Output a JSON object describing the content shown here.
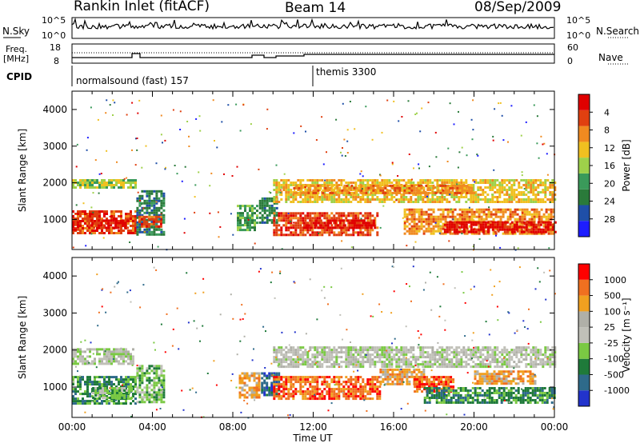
{
  "header": {
    "station": "Rankin Inlet (fitACF)",
    "beam": "Beam 14",
    "date": "08/Sep/2009"
  },
  "left_labels": {
    "nsky": "N.Sky",
    "freq_line1": "Freq.",
    "freq_line2": "[MHz]",
    "cpid": "CPID"
  },
  "right_labels": {
    "nsearch": "N.Search",
    "nave": "Nave"
  },
  "mini_axes": {
    "nsky_ticks": [
      "10^5",
      "10^0"
    ],
    "freq_ticks": [
      "18",
      "8"
    ],
    "nsearch_ticks": [
      "10^5",
      "10^0"
    ],
    "nave_ticks": [
      "60",
      "0"
    ]
  },
  "cpid_modes": [
    {
      "label": "normalsound (fast) 157",
      "start_hour": 0
    },
    {
      "label": "themis 3300",
      "start_hour": 12.0
    }
  ],
  "colors": {
    "power": [
      "#1d1dff",
      "#1f4fa8",
      "#2a7a3a",
      "#3a9a5a",
      "#9ed14a",
      "#f0c020",
      "#f08a20",
      "#e04010",
      "#e00000"
    ],
    "velocity": [
      "#2233cc",
      "#2e6a8a",
      "#1f7a3a",
      "#7ac943",
      "#c0c0b8",
      "#b0b0a8",
      "#f0a020",
      "#f07020",
      "#ff0000"
    ]
  },
  "chart_data": [
    {
      "type": "heatmap",
      "panel": "power",
      "ylabel": "Slant Range [km]",
      "xlim": [
        0,
        24
      ],
      "ylim": [
        180,
        4500
      ],
      "yticks": [
        "1000",
        "2000",
        "3000",
        "4000"
      ],
      "colorbar_label": "Power [dB]",
      "colorbar_ticks": [
        "4",
        "8",
        "12",
        "16",
        "20",
        "24",
        "28"
      ],
      "echo_regions": [
        {
          "t0": 0.0,
          "t1": 3.2,
          "r0": 1850,
          "r1": 2100,
          "level": 4
        },
        {
          "t0": 0.0,
          "t1": 3.2,
          "r0": 600,
          "r1": 1250,
          "level": 7
        },
        {
          "t0": 0.0,
          "t1": 0.3,
          "r0": 700,
          "r1": 950,
          "level": 8
        },
        {
          "t0": 0.8,
          "t1": 2.8,
          "r0": 750,
          "r1": 1000,
          "level": 8
        },
        {
          "t0": 3.2,
          "t1": 4.6,
          "r0": 600,
          "r1": 1800,
          "level": 2
        },
        {
          "t0": 3.3,
          "t1": 4.4,
          "r0": 800,
          "r1": 1100,
          "level": 7
        },
        {
          "t0": 8.2,
          "t1": 9.2,
          "r0": 700,
          "r1": 1400,
          "level": 3
        },
        {
          "t0": 9.3,
          "t1": 10.2,
          "r0": 900,
          "r1": 1600,
          "level": 2
        },
        {
          "t0": 10.0,
          "t1": 24.0,
          "r0": 1500,
          "r1": 2100,
          "level": 5
        },
        {
          "t0": 11.0,
          "t1": 20.0,
          "r0": 1700,
          "r1": 1950,
          "level": 6
        },
        {
          "t0": 10.0,
          "t1": 15.2,
          "r0": 600,
          "r1": 1200,
          "level": 7
        },
        {
          "t0": 11.5,
          "t1": 15.0,
          "r0": 750,
          "r1": 1000,
          "level": 8
        },
        {
          "t0": 16.5,
          "t1": 24.0,
          "r0": 600,
          "r1": 1300,
          "level": 6
        },
        {
          "t0": 18.5,
          "t1": 24.0,
          "r0": 650,
          "r1": 950,
          "level": 8
        }
      ]
    },
    {
      "type": "heatmap",
      "panel": "velocity",
      "ylabel": "Slant Range [km]",
      "xlabel": "Time UT",
      "xlim": [
        0,
        24
      ],
      "ylim": [
        180,
        4500
      ],
      "xticks": [
        "00:00",
        "04:00",
        "08:00",
        "12:00",
        "16:00",
        "20:00",
        "00:00"
      ],
      "yticks": [
        "1000",
        "2000",
        "3000",
        "4000"
      ],
      "colorbar_label": "Velocity [m s⁻¹]",
      "colorbar_ticks": [
        "1000",
        "500",
        "100",
        "25",
        "-25",
        "-100",
        "-500",
        "-1000"
      ],
      "echo_regions": [
        {
          "t0": 0.0,
          "t1": 3.0,
          "r0": 1650,
          "r1": 2050,
          "level": 4
        },
        {
          "t0": 0.0,
          "t1": 3.2,
          "r0": 550,
          "r1": 1300,
          "level": 2
        },
        {
          "t0": 1.0,
          "t1": 3.0,
          "r0": 700,
          "r1": 1000,
          "level": 3
        },
        {
          "t0": 3.2,
          "t1": 4.6,
          "r0": 600,
          "r1": 1600,
          "level": 3
        },
        {
          "t0": 8.3,
          "t1": 9.3,
          "r0": 700,
          "r1": 1400,
          "level": 6
        },
        {
          "t0": 9.4,
          "t1": 10.3,
          "r0": 800,
          "r1": 1400,
          "level": 1
        },
        {
          "t0": 10.0,
          "t1": 24.0,
          "r0": 1550,
          "r1": 2100,
          "level": 4
        },
        {
          "t0": 10.0,
          "t1": 15.3,
          "r0": 700,
          "r1": 1300,
          "level": 7
        },
        {
          "t0": 15.3,
          "t1": 17.5,
          "r0": 1100,
          "r1": 1500,
          "level": 6
        },
        {
          "t0": 17.0,
          "t1": 19.0,
          "r0": 900,
          "r1": 1300,
          "level": 7
        },
        {
          "t0": 17.5,
          "t1": 24.0,
          "r0": 550,
          "r1": 1000,
          "level": 2
        },
        {
          "t0": 20.0,
          "t1": 23.0,
          "r0": 1100,
          "r1": 1450,
          "level": 6
        }
      ]
    }
  ]
}
